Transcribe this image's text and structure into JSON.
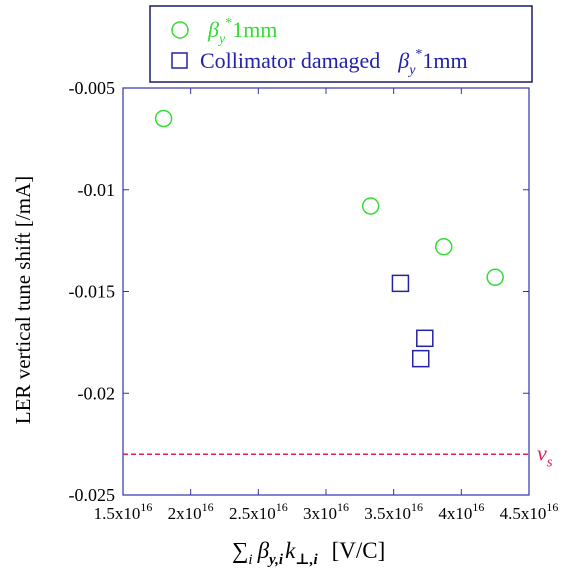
{
  "chart_data": {
    "type": "scatter",
    "title": "",
    "xlabel": "∑ᵢ β<sub>y,i</sub> k<sub>⊥,i</sub>  [V/C]",
    "xlabel_parts": {
      "sum": "∑",
      "sum_index": "i",
      "beta": "β",
      "beta_sub": "y,i",
      "k": "k",
      "k_sub": "⊥,i",
      "unit": "[V/C]"
    },
    "ylabel": "LER vertical tune shift [/mA]",
    "xlim": [
      1.5e+16,
      4.5e+16
    ],
    "ylim": [
      -0.025,
      -0.005
    ],
    "xticks": [
      {
        "value": 1.5e+16,
        "mant": "1.5x10",
        "exp": "16"
      },
      {
        "value": 2e+16,
        "mant": "2x10",
        "exp": "16"
      },
      {
        "value": 2.5e+16,
        "mant": "2.5x10",
        "exp": "16"
      },
      {
        "value": 3e+16,
        "mant": "3x10",
        "exp": "16"
      },
      {
        "value": 3.5e+16,
        "mant": "3.5x10",
        "exp": "16"
      },
      {
        "value": 4e+16,
        "mant": "4x10",
        "exp": "16"
      },
      {
        "value": 4.5e+16,
        "mant": "4.5x10",
        "exp": "16"
      }
    ],
    "yticks": [
      {
        "value": -0.005,
        "label": "-0.005"
      },
      {
        "value": -0.01,
        "label": "-0.01"
      },
      {
        "value": -0.015,
        "label": "-0.015"
      },
      {
        "value": -0.02,
        "label": "-0.02"
      },
      {
        "value": -0.025,
        "label": "-0.025"
      }
    ],
    "grid": false,
    "legend_placement": "top",
    "series": [
      {
        "legend": {
          "beta": "β",
          "sub": "y",
          "sup": "*",
          "text": "1mm"
        },
        "marker": "circle",
        "color": "#33dd33",
        "points": [
          {
            "x": 1.8e+16,
            "y": -0.0065
          },
          {
            "x": 3.33e+16,
            "y": -0.0108
          },
          {
            "x": 3.87e+16,
            "y": -0.0128
          },
          {
            "x": 4.25e+16,
            "y": -0.0143
          }
        ]
      },
      {
        "legend": {
          "prefix": "Collimator damaged",
          "beta": "β",
          "sub": "y",
          "sup": "*",
          "text": "1mm"
        },
        "marker": "square",
        "color": "#2222aa",
        "points": [
          {
            "x": 3.55e+16,
            "y": -0.0146
          },
          {
            "x": 3.73e+16,
            "y": -0.0173
          },
          {
            "x": 3.7e+16,
            "y": -0.0183
          }
        ]
      }
    ],
    "reference_line": {
      "y": -0.023,
      "label_main": "ν",
      "label_sub": "s",
      "color": "#dd2255",
      "style": "dashed"
    },
    "colors": {
      "axis_frame": "#3333aa",
      "legend_border": "#1a1a6a",
      "text": "#000000"
    }
  }
}
